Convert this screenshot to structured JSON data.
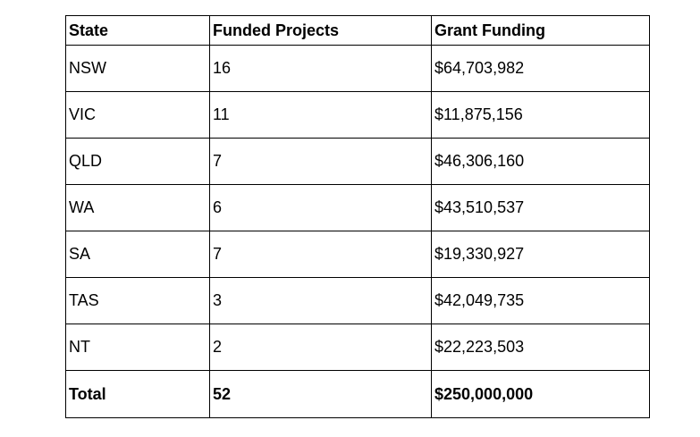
{
  "page": {
    "background_color": "#ffffff",
    "text_color": "#000000",
    "border_color": "#000000"
  },
  "table": {
    "headers": [
      "State",
      "Funded Projects",
      "Grant Funding"
    ],
    "rows": [
      [
        "NSW",
        "16",
        "$64,703,982"
      ],
      [
        "VIC",
        "11",
        "$11,875,156"
      ],
      [
        "QLD",
        "7",
        "$46,306,160"
      ],
      [
        "WA",
        "6",
        "$43,510,537"
      ],
      [
        "SA",
        "7",
        "$19,330,927"
      ],
      [
        "TAS",
        "3",
        "$42,049,735"
      ],
      [
        "NT",
        "2",
        "$22,223,503"
      ]
    ],
    "total_row": [
      "Total",
      "52",
      "$250,000,000"
    ]
  },
  "chart_data": {
    "type": "table",
    "title": "",
    "columns": [
      "State",
      "Funded Projects",
      "Grant Funding"
    ],
    "categories": [
      "NSW",
      "VIC",
      "QLD",
      "WA",
      "SA",
      "TAS",
      "NT"
    ],
    "series": [
      {
        "name": "Funded Projects",
        "values": [
          16,
          11,
          7,
          6,
          7,
          3,
          2
        ]
      },
      {
        "name": "Grant Funding",
        "values": [
          64703982,
          11875156,
          46306160,
          43510537,
          19330927,
          42049735,
          22223503
        ]
      }
    ],
    "totals": {
      "Funded Projects": 52,
      "Grant Funding": 250000000
    }
  }
}
